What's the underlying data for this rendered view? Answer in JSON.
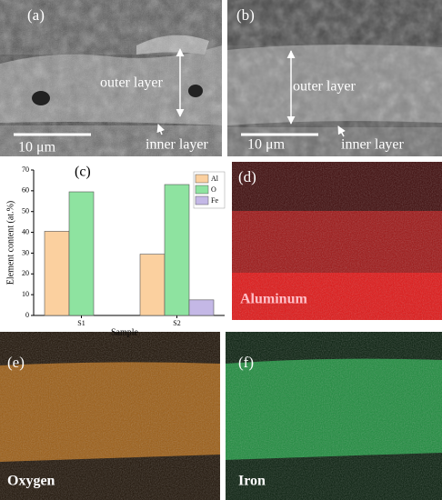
{
  "panels": {
    "a": {
      "label": "(a)",
      "outer": "outer layer",
      "inner": "inner layer",
      "scale_bar": "10 μm"
    },
    "b": {
      "label": "(b)",
      "outer": "outer layer",
      "inner": "inner layer",
      "scale_bar": "10 μm"
    },
    "d": {
      "label": "(d)",
      "element": "Aluminum"
    },
    "e": {
      "label": "(e)",
      "element": "Oxygen"
    },
    "f": {
      "label": "(f)",
      "element": "Iron"
    }
  },
  "chart_data": {
    "type": "bar",
    "panel_label": "(c)",
    "x_label": "Sample",
    "y_label": "Element content (at.%)",
    "categories": [
      "S1",
      "S2"
    ],
    "series": [
      {
        "name": "Al",
        "color": "#fbd09f",
        "values": [
          40.5,
          29.5
        ]
      },
      {
        "name": "O",
        "color": "#8ee3a0",
        "values": [
          59.5,
          63
        ]
      },
      {
        "name": "Fe",
        "color": "#c4b8e6",
        "values": [
          null,
          7.5
        ]
      }
    ],
    "ylim": [
      0,
      70
    ],
    "yticks": [
      0,
      10,
      20,
      30,
      40,
      50,
      60,
      70
    ],
    "legend": "upper right"
  }
}
